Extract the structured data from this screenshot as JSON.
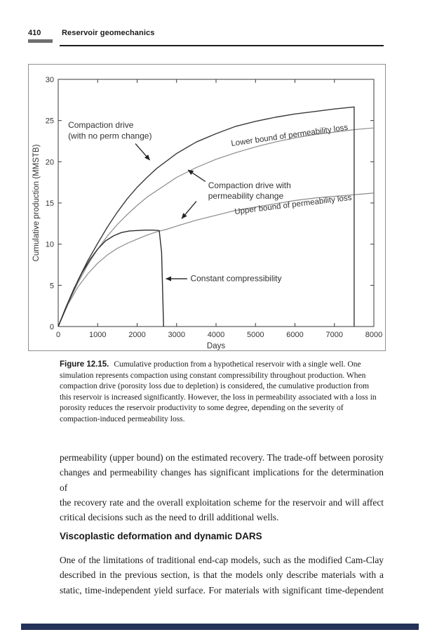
{
  "header": {
    "page_number": "410",
    "running_title": "Reservoir geomechanics"
  },
  "figure_caption": {
    "label": "Figure 12.15.",
    "first_line": "Cumulative production from a hypothetical reservoir with a single well. One",
    "rest_lines": [
      "simulation represents compaction using constant compressibility throughout production. When",
      "compaction drive (porosity loss due to depletion) is considered, the cumulative production from",
      "this reservoir is increased significantly. However, the loss in permeability associated with a loss in",
      "porosity reduces the reservoir productivity to some degree, depending on the severity of",
      "compaction-induced permeability loss."
    ]
  },
  "paragraph1_lines": [
    "permeability (upper bound) on the estimated recovery. The trade-off between porosity",
    "changes and permeability changes has significant implications for the determination of",
    "the recovery rate and the overall exploitation scheme for the reservoir and will affect",
    "critical decisions such as the need to drill additional wells."
  ],
  "section_heading": "Viscoplastic deformation and dynamic DARS",
  "paragraph2_lines": [
    "One of the limitations of traditional end-cap models, such as the modified Cam-Clay",
    "described in the previous section, is that the models only describe materials with a",
    "static, time-independent yield surface. For materials with significant time-dependent"
  ],
  "chart_data": {
    "type": "line",
    "title": "",
    "xlabel": "Days",
    "ylabel": "Cumulative production (MMSTB)",
    "xlim": [
      0,
      8000
    ],
    "ylim": [
      0,
      30
    ],
    "xticks": [
      0,
      1000,
      2000,
      3000,
      4000,
      5000,
      6000,
      7000,
      8000
    ],
    "yticks": [
      0,
      5,
      10,
      15,
      20,
      25,
      30
    ],
    "grid": false,
    "legend_position": "none",
    "axis_color": "#3a3a3a",
    "series": [
      {
        "name": "Lower bound of permeability loss",
        "color": "#8a8a8a",
        "width": 1.2,
        "x": [
          0,
          250,
          500,
          750,
          1000,
          1250,
          1500,
          1750,
          2000,
          2250,
          2500,
          3000,
          3500,
          4000,
          4500,
          5000,
          5500,
          6000,
          6500,
          7000,
          7500,
          8000
        ],
        "y": [
          0,
          2.8,
          5.3,
          7.5,
          9.4,
          11.0,
          12.4,
          13.6,
          14.7,
          15.7,
          16.5,
          18.1,
          19.3,
          20.3,
          21.1,
          21.8,
          22.4,
          22.9,
          23.3,
          23.6,
          23.9,
          24.1
        ]
      },
      {
        "name": "Upper bound of permeability loss",
        "color": "#8a8a8a",
        "width": 1.2,
        "x": [
          0,
          250,
          500,
          750,
          1000,
          1250,
          1500,
          1750,
          2000,
          2250,
          2500,
          2750,
          3000,
          3500,
          4000,
          4500,
          5000,
          5500,
          6000,
          6500,
          7000,
          7500,
          8000
        ],
        "y": [
          0,
          2.7,
          4.8,
          6.4,
          7.7,
          8.7,
          9.5,
          10.1,
          10.6,
          11.1,
          11.5,
          11.8,
          12.2,
          12.9,
          13.5,
          14.1,
          14.5,
          14.9,
          15.3,
          15.6,
          15.8,
          16.0,
          16.2
        ]
      },
      {
        "name": "Compaction drive (with no perm change)",
        "color": "#3a3a3a",
        "width": 1.4,
        "x": [
          0,
          250,
          500,
          750,
          1000,
          1250,
          1500,
          1750,
          2000,
          2250,
          2500,
          2750,
          3000,
          3250,
          3500,
          3750,
          4000,
          4500,
          5000,
          5500,
          6000,
          6500,
          7000,
          7500,
          7500
        ],
        "y": [
          0,
          2.9,
          5.6,
          8.0,
          10.1,
          12.1,
          13.9,
          15.5,
          16.9,
          18.1,
          19.2,
          20.1,
          21.0,
          21.7,
          22.4,
          22.9,
          23.4,
          24.3,
          24.9,
          25.4,
          25.8,
          26.1,
          26.4,
          26.65,
          0
        ]
      },
      {
        "name": "Constant compressibility",
        "color": "#2e2e2e",
        "width": 1.4,
        "x": [
          0,
          200,
          400,
          600,
          800,
          1000,
          1200,
          1400,
          1600,
          1800,
          2000,
          2200,
          2400,
          2560,
          2620,
          2670
        ],
        "y": [
          0,
          2.4,
          4.6,
          6.5,
          8.1,
          9.4,
          10.4,
          11.0,
          11.4,
          11.6,
          11.65,
          11.7,
          11.7,
          11.65,
          9.0,
          0
        ]
      }
    ],
    "annotations": [
      {
        "name": "compaction-no-perm-label",
        "lines": [
          "Compaction drive",
          "(with no perm change)"
        ],
        "x": 250,
        "y": 24.1,
        "anchor": "start",
        "color": "#222222",
        "rotate": 0,
        "size": 12
      },
      {
        "name": "lower-bound-label",
        "lines": [
          "Lower bound of permeability loss"
        ],
        "x": 5870,
        "y": 22.9,
        "anchor": "middle",
        "color": "#8c8c8c",
        "rotate": -8,
        "size": 11.5
      },
      {
        "name": "compaction-perm-change-label",
        "lines": [
          "Compaction drive with",
          "permeability change"
        ],
        "x": 3800,
        "y": 16.8,
        "anchor": "start",
        "color": "#222222",
        "rotate": 0,
        "size": 12
      },
      {
        "name": "upper-bound-label",
        "lines": [
          "Upper bound of permeability loss"
        ],
        "x": 5960,
        "y": 14.5,
        "anchor": "middle",
        "color": "#8c8c8c",
        "rotate": -7,
        "size": 11.5
      },
      {
        "name": "constant-compressibility-label",
        "lines": [
          "Constant compressibility"
        ],
        "x": 3350,
        "y": 5.5,
        "anchor": "start",
        "color": "#222222",
        "rotate": 0,
        "size": 12
      }
    ],
    "arrows": [
      {
        "x1": 1956,
        "y1": 22.2,
        "x2": 2320,
        "y2": 20.2
      },
      {
        "x1": 3730,
        "y1": 17.6,
        "x2": 3290,
        "y2": 19.0
      },
      {
        "x1": 3500,
        "y1": 15.2,
        "x2": 3130,
        "y2": 13.1
      },
      {
        "x1": 3270,
        "y1": 5.8,
        "x2": 2730,
        "y2": 5.8
      }
    ]
  }
}
